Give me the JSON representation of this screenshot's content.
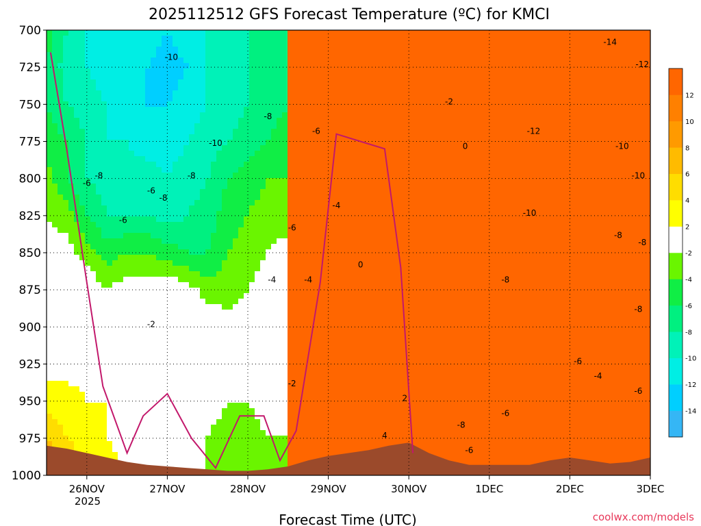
{
  "chart_data": {
    "type": "heatmap",
    "title": "2025112512 GFS Forecast Temperature (ºC) for KMCI",
    "xlabel": "Forecast Time (UTC)",
    "ylabel": "",
    "credit": "coolwx.com/models",
    "y_axis": {
      "ticks": [
        "700",
        "725",
        "750",
        "775",
        "800",
        "825",
        "850",
        "875",
        "900",
        "925",
        "950",
        "975",
        "1000"
      ],
      "range": [
        700,
        1000
      ],
      "inverted": true
    },
    "x_axis": {
      "ticks": [
        "26NOV",
        "27NOV",
        "28NOV",
        "29NOV",
        "30NOV",
        "1DEC",
        "2DEC",
        "3DEC"
      ],
      "first_tick_year": "2025",
      "range_days": [
        25.5,
        33.0
      ]
    },
    "grid": true,
    "colorbar": {
      "labels": [
        "12",
        "10",
        "8",
        "6",
        "4",
        "2",
        "-2",
        "-4",
        "-6",
        "-8",
        "-10",
        "-12",
        "-14"
      ],
      "bins": [
        {
          "lo": -16,
          "hi": -14,
          "color": "#35b6f5"
        },
        {
          "lo": -14,
          "hi": -12,
          "color": "#00cfff"
        },
        {
          "lo": -12,
          "hi": -10,
          "color": "#00eee4"
        },
        {
          "lo": -10,
          "hi": -8,
          "color": "#00f2b8"
        },
        {
          "lo": -8,
          "hi": -6,
          "color": "#00f080"
        },
        {
          "lo": -6,
          "hi": -4,
          "color": "#10ee45"
        },
        {
          "lo": -4,
          "hi": -2,
          "color": "#6af500"
        },
        {
          "lo": -2,
          "hi": 2,
          "color": "#ffffff"
        },
        {
          "lo": 2,
          "hi": 4,
          "color": "#ffff00"
        },
        {
          "lo": 4,
          "hi": 6,
          "color": "#ffdd00"
        },
        {
          "lo": 6,
          "hi": 8,
          "color": "#ffbb00"
        },
        {
          "lo": 8,
          "hi": 10,
          "color": "#ff9a00"
        },
        {
          "lo": 10,
          "hi": 12,
          "color": "#ff8000"
        },
        {
          "lo": 12,
          "hi": 14,
          "color": "#ff6600"
        }
      ]
    },
    "colors": {
      "terrain": "#9b4a2b",
      "freezing_line": "#c2186b"
    },
    "field": {
      "time_days": [
        25.5,
        25.75,
        26.0,
        26.25,
        26.5,
        26.75,
        27.0,
        27.25,
        27.5,
        27.75,
        28.0,
        28.25,
        28.5,
        28.75,
        29.0,
        29.25,
        29.5,
        29.75,
        30.0,
        30.25,
        30.5,
        30.75,
        31.0,
        31.25,
        31.5,
        31.75,
        32.0,
        32.25,
        32.5,
        32.75,
        33.0
      ],
      "pressure_hpa": [
        700,
        725,
        750,
        775,
        800,
        825,
        850,
        875,
        900,
        925,
        950,
        975,
        1000
      ],
      "temp_c": [
        [
          -5,
          -8,
          -10,
          -10,
          -10,
          -11,
          -12,
          -11,
          -10,
          -9,
          -8,
          -7,
          -6
        ],
        [
          -6,
          -9,
          -10,
          -11,
          -11,
          -12,
          -13,
          -12,
          -10,
          -9,
          -8,
          -7,
          -6
        ],
        [
          -6,
          -8,
          -9,
          -10,
          -11,
          -12,
          -12,
          -11,
          -10,
          -9,
          -8,
          -7,
          -6
        ],
        [
          -5,
          -6,
          -8,
          -10,
          -10,
          -11,
          -11,
          -10,
          -9,
          -8,
          -7,
          -6,
          -5
        ],
        [
          -3,
          -6,
          -8,
          -9,
          -9,
          -9,
          -10,
          -9,
          -8,
          -6,
          -5,
          -4,
          -4
        ],
        [
          -2,
          -3,
          -6,
          -8,
          -8,
          -8,
          -9,
          -8,
          -7,
          -5,
          -4,
          -3,
          -3
        ],
        [
          -1,
          -1,
          -3,
          -5,
          -4,
          -4,
          -5,
          -6,
          -6,
          -4,
          -3,
          -2,
          -1
        ],
        [
          0,
          0,
          0,
          -2,
          -1,
          -1,
          0,
          -1,
          -3,
          -3,
          -2,
          -1,
          1
        ],
        [
          0,
          -1,
          -1,
          -1,
          -1,
          -1,
          0,
          0,
          0,
          -1,
          -1,
          0,
          1
        ],
        [
          1,
          1,
          1,
          0,
          0,
          0,
          -1,
          -1,
          0,
          -1,
          -1,
          -1,
          0
        ],
        [
          3,
          3,
          2,
          2,
          2,
          0,
          0,
          0,
          -1,
          -2,
          -2,
          -1,
          -1
        ],
        [
          6,
          4,
          3,
          2,
          1,
          0,
          -1,
          -1,
          -2,
          -3,
          -3,
          -2,
          -2
        ],
        [
          9,
          6,
          4,
          3,
          2,
          1,
          0,
          -1,
          -2,
          -4,
          -4,
          -3,
          -3
        ]
      ]
    },
    "terrain_floor_hpa": [
      980,
      982,
      985,
      988,
      991,
      993,
      994,
      995,
      996,
      997,
      997,
      996,
      994,
      990,
      987,
      985,
      983,
      980,
      978,
      985,
      990,
      993,
      993,
      993,
      993,
      990,
      988,
      990,
      992,
      991,
      988
    ],
    "freezing_line": [
      {
        "t": 25.55,
        "p": 715
      },
      {
        "t": 25.75,
        "p": 780
      },
      {
        "t": 26.0,
        "p": 870
      },
      {
        "t": 26.2,
        "p": 940
      },
      {
        "t": 26.5,
        "p": 985
      },
      {
        "t": 26.7,
        "p": 960
      },
      {
        "t": 27.0,
        "p": 945
      },
      {
        "t": 27.3,
        "p": 975
      },
      {
        "t": 27.6,
        "p": 995
      },
      {
        "t": 27.9,
        "p": 960
      },
      {
        "t": 28.2,
        "p": 960
      },
      {
        "t": 28.4,
        "p": 990
      },
      {
        "t": 28.6,
        "p": 970
      },
      {
        "t": 28.9,
        "p": 870
      },
      {
        "t": 29.1,
        "p": 770
      },
      {
        "t": 29.4,
        "p": 775
      },
      {
        "t": 29.7,
        "p": 780
      },
      {
        "t": 29.9,
        "p": 860
      },
      {
        "t": 30.05,
        "p": 985
      }
    ],
    "labeled_contours": [
      {
        "t": 27.05,
        "p": 720,
        "text": "-10"
      },
      {
        "t": 28.25,
        "p": 760,
        "text": "-8"
      },
      {
        "t": 28.85,
        "p": 770,
        "text": "-6"
      },
      {
        "t": 30.5,
        "p": 750,
        "text": "-2"
      },
      {
        "t": 30.7,
        "p": 780,
        "text": "0"
      },
      {
        "t": 31.55,
        "p": 770,
        "text": "-12"
      },
      {
        "t": 32.5,
        "p": 710,
        "text": "-14"
      },
      {
        "t": 32.9,
        "p": 725,
        "text": "-12"
      },
      {
        "t": 32.65,
        "p": 780,
        "text": "-10"
      },
      {
        "t": 32.85,
        "p": 800,
        "text": "-10"
      },
      {
        "t": 32.6,
        "p": 840,
        "text": "-8"
      },
      {
        "t": 32.9,
        "p": 845,
        "text": "-8"
      },
      {
        "t": 32.85,
        "p": 890,
        "text": "-8"
      },
      {
        "t": 32.1,
        "p": 925,
        "text": "-6"
      },
      {
        "t": 32.35,
        "p": 935,
        "text": "-4"
      },
      {
        "t": 32.85,
        "p": 945,
        "text": "-6"
      },
      {
        "t": 31.5,
        "p": 825,
        "text": "-10"
      },
      {
        "t": 31.2,
        "p": 870,
        "text": "-8"
      },
      {
        "t": 31.2,
        "p": 960,
        "text": "-6"
      },
      {
        "t": 30.75,
        "p": 985,
        "text": "-6"
      },
      {
        "t": 30.65,
        "p": 968,
        "text": "-8"
      },
      {
        "t": 28.55,
        "p": 940,
        "text": "-2"
      },
      {
        "t": 26.8,
        "p": 900,
        "text": "-2"
      },
      {
        "t": 28.3,
        "p": 870,
        "text": "-4"
      },
      {
        "t": 28.75,
        "p": 870,
        "text": "-4"
      },
      {
        "t": 29.1,
        "p": 820,
        "text": "-4"
      },
      {
        "t": 28.55,
        "p": 835,
        "text": "-6"
      },
      {
        "t": 27.6,
        "p": 778,
        "text": "-10"
      },
      {
        "t": 26.95,
        "p": 815,
        "text": "-8"
      },
      {
        "t": 26.8,
        "p": 810,
        "text": "-6"
      },
      {
        "t": 26.45,
        "p": 830,
        "text": "-6"
      },
      {
        "t": 26.15,
        "p": 800,
        "text": "-8"
      },
      {
        "t": 26.0,
        "p": 805,
        "text": "-6"
      },
      {
        "t": 29.4,
        "p": 860,
        "text": "0"
      },
      {
        "t": 29.95,
        "p": 950,
        "text": "2"
      },
      {
        "t": 29.7,
        "p": 975,
        "text": "4"
      },
      {
        "t": 27.3,
        "p": 800,
        "text": "-8"
      }
    ]
  }
}
